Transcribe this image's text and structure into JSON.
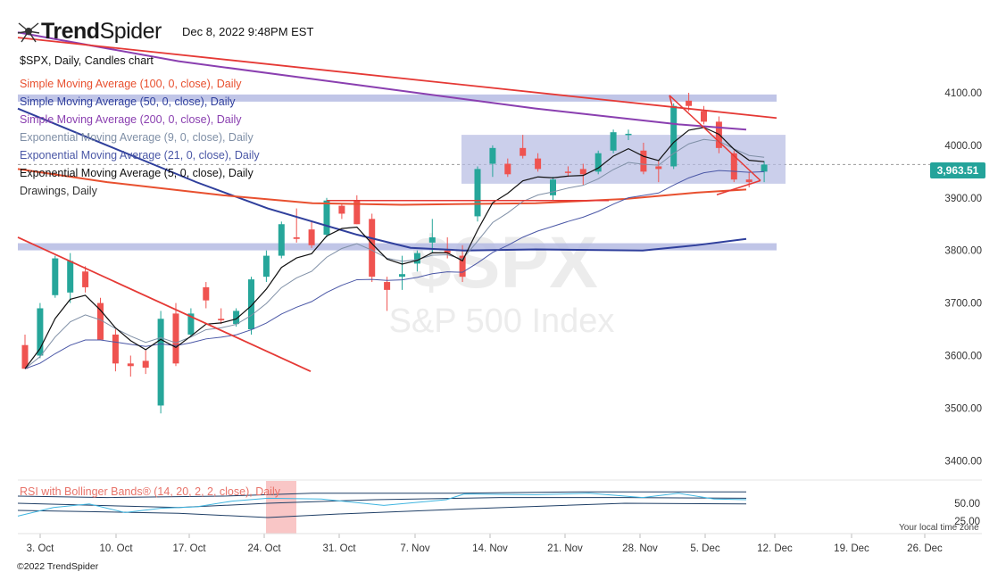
{
  "header": {
    "brand_bold": "Trend",
    "brand_light": "Spider",
    "timestamp": "Dec 8, 2022 9:48PM EST",
    "symbol_line": "$SPX, Daily, Candles chart"
  },
  "legend": [
    {
      "label": "Simple Moving Average (100, 0, close), Daily",
      "color": "#e8502f"
    },
    {
      "label": "Simple Moving Average (50, 0, close), Daily",
      "color": "#2f3f9c"
    },
    {
      "label": "Simple Moving Average (200, 0, close), Daily",
      "color": "#8a3fb0"
    },
    {
      "label": "Exponential Moving Average (9, 0, close), Daily",
      "color": "#7f8fa6"
    },
    {
      "label": "Exponential Moving Average (21, 0, close), Daily",
      "color": "#4a57a6"
    },
    {
      "label": "Exponential Moving Average (5, 0, close), Daily",
      "color": "#111111"
    },
    {
      "label": "Drawings, Daily",
      "color": "#333333"
    }
  ],
  "watermark": {
    "symbol": "$SPX",
    "name": "S&P 500 Index"
  },
  "price_label": "3,963.51",
  "rsi_label": "RSI with Bollinger Bands® (14, 20, 2, 2, close), Daily",
  "timezone_label": "Your local time zone",
  "copyright": "©2022 TrendSpider",
  "colors": {
    "up": "#26a69a",
    "down": "#ef5350",
    "zone": "#b5bbe3",
    "trendline": "#e53935",
    "rsi_band": "#f7b8b8"
  },
  "chart_data": {
    "type": "candlestick",
    "ylim": [
      3350,
      4150
    ],
    "yticks": [
      "4100.00",
      "4000.00",
      "3900.00",
      "3800.00",
      "3700.00",
      "3600.00",
      "3500.00",
      "3400.00"
    ],
    "x_labels": [
      "3. Oct",
      "10. Oct",
      "17. Oct",
      "24. Oct",
      "31. Oct",
      "7. Nov",
      "14. Nov",
      "21. Nov",
      "28. Nov",
      "5. Dec",
      "12. Dec",
      "19. Dec",
      "26. Dec"
    ],
    "candles": [
      {
        "o": 3620,
        "h": 3640,
        "l": 3580,
        "c": 3575
      },
      {
        "o": 3600,
        "h": 3700,
        "l": 3595,
        "c": 3690
      },
      {
        "o": 3715,
        "h": 3790,
        "l": 3710,
        "c": 3785
      },
      {
        "o": 3720,
        "h": 3795,
        "l": 3700,
        "c": 3780
      },
      {
        "o": 3760,
        "h": 3770,
        "l": 3720,
        "c": 3730
      },
      {
        "o": 3700,
        "h": 3710,
        "l": 3630,
        "c": 3630
      },
      {
        "o": 3640,
        "h": 3650,
        "l": 3570,
        "c": 3585
      },
      {
        "o": 3585,
        "h": 3600,
        "l": 3560,
        "c": 3580
      },
      {
        "o": 3590,
        "h": 3610,
        "l": 3565,
        "c": 3577
      },
      {
        "o": 3505,
        "h": 3685,
        "l": 3490,
        "c": 3670
      },
      {
        "o": 3680,
        "h": 3700,
        "l": 3580,
        "c": 3585
      },
      {
        "o": 3640,
        "h": 3690,
        "l": 3635,
        "c": 3680
      },
      {
        "o": 3730,
        "h": 3740,
        "l": 3690,
        "c": 3705
      },
      {
        "o": 3670,
        "h": 3690,
        "l": 3660,
        "c": 3667
      },
      {
        "o": 3660,
        "h": 3690,
        "l": 3655,
        "c": 3685
      },
      {
        "o": 3650,
        "h": 3750,
        "l": 3640,
        "c": 3745
      },
      {
        "o": 3750,
        "h": 3800,
        "l": 3740,
        "c": 3790
      },
      {
        "o": 3790,
        "h": 3855,
        "l": 3785,
        "c": 3850
      },
      {
        "o": 3825,
        "h": 3880,
        "l": 3815,
        "c": 3822
      },
      {
        "o": 3840,
        "h": 3855,
        "l": 3805,
        "c": 3810
      },
      {
        "o": 3830,
        "h": 3900,
        "l": 3825,
        "c": 3895
      },
      {
        "o": 3885,
        "h": 3890,
        "l": 3860,
        "c": 3870
      },
      {
        "o": 3895,
        "h": 3905,
        "l": 3850,
        "c": 3850
      },
      {
        "o": 3860,
        "h": 3870,
        "l": 3740,
        "c": 3750
      },
      {
        "o": 3740,
        "h": 3750,
        "l": 3685,
        "c": 3725
      },
      {
        "o": 3750,
        "h": 3790,
        "l": 3725,
        "c": 3755
      },
      {
        "o": 3775,
        "h": 3800,
        "l": 3760,
        "c": 3795
      },
      {
        "o": 3815,
        "h": 3860,
        "l": 3795,
        "c": 3825
      },
      {
        "o": 3800,
        "h": 3825,
        "l": 3785,
        "c": 3795
      },
      {
        "o": 3790,
        "h": 3810,
        "l": 3740,
        "c": 3750
      },
      {
        "o": 3865,
        "h": 3960,
        "l": 3855,
        "c": 3955
      },
      {
        "o": 3965,
        "h": 4000,
        "l": 3940,
        "c": 3995
      },
      {
        "o": 3965,
        "h": 3975,
        "l": 3940,
        "c": 3945
      },
      {
        "o": 3995,
        "h": 4020,
        "l": 3975,
        "c": 3980
      },
      {
        "o": 3975,
        "h": 3985,
        "l": 3950,
        "c": 3955
      },
      {
        "o": 3905,
        "h": 3940,
        "l": 3895,
        "c": 3935
      },
      {
        "o": 3950,
        "h": 3960,
        "l": 3940,
        "c": 3948
      },
      {
        "o": 3955,
        "h": 3965,
        "l": 3925,
        "c": 3945
      },
      {
        "o": 3950,
        "h": 3990,
        "l": 3945,
        "c": 3985
      },
      {
        "o": 3990,
        "h": 4030,
        "l": 3985,
        "c": 4025
      },
      {
        "o": 4020,
        "h": 4030,
        "l": 4010,
        "c": 4022
      },
      {
        "o": 3990,
        "h": 4005,
        "l": 3945,
        "c": 3950
      },
      {
        "o": 3960,
        "h": 3970,
        "l": 3930,
        "c": 3955
      },
      {
        "o": 3960,
        "h": 4080,
        "l": 3955,
        "c": 4075
      },
      {
        "o": 4085,
        "h": 4100,
        "l": 4065,
        "c": 4075
      },
      {
        "o": 4065,
        "h": 4075,
        "l": 4040,
        "c": 4045
      },
      {
        "o": 4045,
        "h": 4055,
        "l": 3985,
        "c": 3995
      },
      {
        "o": 3985,
        "h": 3990,
        "l": 3930,
        "c": 3935
      },
      {
        "o": 3935,
        "h": 3950,
        "l": 3920,
        "c": 3930
      },
      {
        "o": 3950,
        "h": 3970,
        "l": 3930,
        "c": 3963.51
      }
    ]
  }
}
